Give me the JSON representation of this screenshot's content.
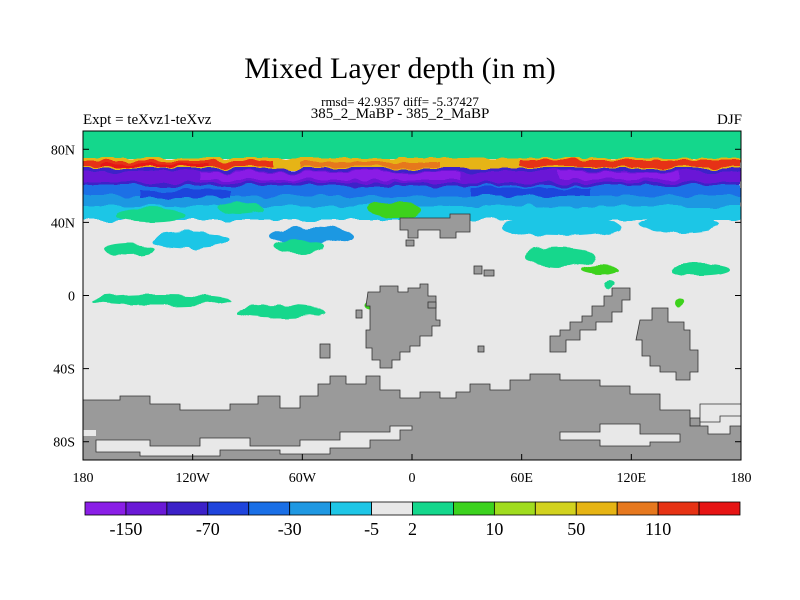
{
  "title": "Mixed Layer depth (in m)",
  "stats_line": "rmsd= 42.9357 diff= -5.37427",
  "experiment_ids": "385_2_MaBP - 385_2_MaBP",
  "left_label": "Expt = teXvz1-teXvz",
  "right_label": "DJF",
  "map": {
    "projection": "cylindrical equidistant",
    "lon_range": [
      -180,
      180
    ],
    "lat_range": [
      -90,
      90
    ],
    "x_ticks": [
      {
        "value": -180,
        "label": "180"
      },
      {
        "value": -120,
        "label": "120W"
      },
      {
        "value": -60,
        "label": "60W"
      },
      {
        "value": 0,
        "label": "0"
      },
      {
        "value": 60,
        "label": "60E"
      },
      {
        "value": 120,
        "label": "120E"
      },
      {
        "value": 180,
        "label": "180"
      }
    ],
    "y_ticks": [
      {
        "value": 80,
        "label": "80N"
      },
      {
        "value": 40,
        "label": "40N"
      },
      {
        "value": 0,
        "label": "0"
      },
      {
        "value": -40,
        "label": "40S"
      },
      {
        "value": -80,
        "label": "80S"
      }
    ],
    "land_color": "#9a9a9a",
    "ocean_background_color": "#e8e8e8"
  },
  "colorbar": {
    "colors": [
      "#8a1ee6",
      "#6a19d6",
      "#3c21c8",
      "#1f44dc",
      "#1a6fe6",
      "#1f98e2",
      "#1ec6e6",
      "#e8e8e8",
      "#14d78c",
      "#3cd21e",
      "#a0dc1e",
      "#d2d21e",
      "#e6b414",
      "#e6781e",
      "#e63214",
      "#e61414"
    ],
    "labels": [
      {
        "index": 1,
        "text": "-150"
      },
      {
        "index": 3,
        "text": "-70"
      },
      {
        "index": 5,
        "text": "-30"
      },
      {
        "index": 7,
        "text": "-5"
      },
      {
        "index": 8,
        "text": "2"
      },
      {
        "index": 10,
        "text": "10"
      },
      {
        "index": 12,
        "text": "50"
      },
      {
        "index": 14,
        "text": "110"
      }
    ]
  }
}
